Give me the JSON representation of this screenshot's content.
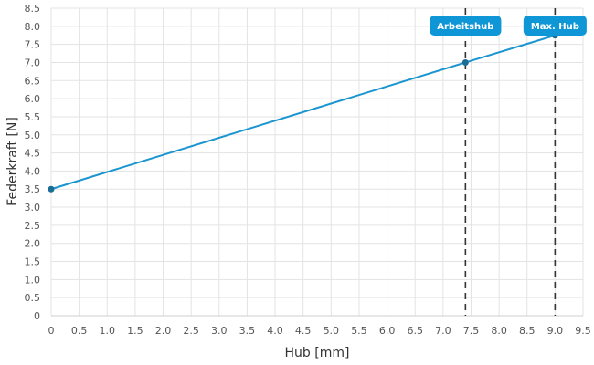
{
  "chart_data": {
    "type": "line",
    "title": "",
    "xlabel": "Hub [mm]",
    "ylabel": "Federkraft [N]",
    "xlim": [
      0,
      9.5
    ],
    "ylim": [
      0,
      8.5
    ],
    "x_ticks": [
      "0",
      "0.5",
      "1.0",
      "1.5",
      "2.0",
      "2.5",
      "3.0",
      "3.5",
      "4.0",
      "4.5",
      "5.0",
      "5.5",
      "6.0",
      "6.5",
      "7.0",
      "7.5",
      "8.0",
      "8.5",
      "9.0",
      "9.5"
    ],
    "y_ticks": [
      "0",
      "0.5",
      "1.0",
      "1.5",
      "2.0",
      "2.5",
      "3.0",
      "3.5",
      "4.0",
      "4.5",
      "5.0",
      "5.5",
      "6.0",
      "6.5",
      "7.0",
      "7.5",
      "8.0",
      "8.5"
    ],
    "grid": true,
    "series": [
      {
        "x": [
          0,
          7.4,
          9.0
        ],
        "y": [
          3.5,
          7.0,
          7.75
        ],
        "color": "#1a95cf"
      }
    ],
    "vertical_markers": [
      {
        "x": 7.4,
        "label": "Arbeitshub"
      },
      {
        "x": 9.0,
        "label": "Max. Hub"
      }
    ],
    "colors": {
      "line": "#1a95cf",
      "marker_point": "#1a6e95",
      "label_bg": "#0f96d6",
      "dashed": "#333333",
      "grid": "#e3e3e3"
    }
  }
}
